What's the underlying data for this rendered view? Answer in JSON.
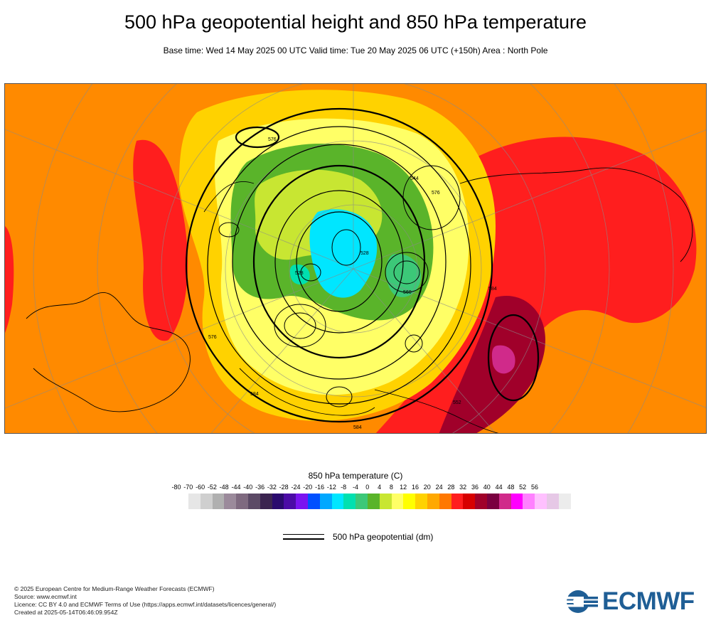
{
  "title": "500 hPa geopotential height and 850 hPa temperature",
  "subtitle": "Base time: Wed 14 May 2025 00 UTC Valid time: Tue 20 May 2025 06 UTC (+150h) Area : North Pole",
  "legend": {
    "temperature_title": "850 hPa temperature (C)",
    "scale_labels": [
      "-80",
      "-70",
      "-60",
      "-52",
      "-48",
      "-44",
      "-40",
      "-36",
      "-32",
      "-28",
      "-24",
      "-20",
      "-16",
      "-12",
      "-8",
      "-4",
      "0",
      "4",
      "8",
      "12",
      "16",
      "20",
      "24",
      "28",
      "32",
      "36",
      "40",
      "44",
      "48",
      "52",
      "56"
    ],
    "scale_colors": [
      "#e6e6e6",
      "#cfcfcf",
      "#b0b0b0",
      "#9b8a9b",
      "#7f6a80",
      "#5c4a66",
      "#3b2450",
      "#2a0a6e",
      "#4b0ba6",
      "#7a14f0",
      "#0050ff",
      "#00a8ff",
      "#00e6ff",
      "#00e0b0",
      "#3cc878",
      "#5ab42a",
      "#c8e632",
      "#ffff66",
      "#ffff00",
      "#ffd200",
      "#ffa800",
      "#ff7800",
      "#ff1e1e",
      "#d70000",
      "#a0002a",
      "#7a0040",
      "#d02a8a",
      "#ff00ff",
      "#ff80ff",
      "#ffc0ff",
      "#e6c8e6",
      "#ececec"
    ],
    "contour_label": "500 hPa geopotential (dm)"
  },
  "map": {
    "contour_labels": [
      "584",
      "552",
      "528",
      "576",
      "584",
      "528",
      "544",
      "560",
      "576",
      "576",
      "584"
    ]
  },
  "footer": {
    "copyright": "© 2025 European Centre for Medium-Range Weather Forecasts (ECMWF)",
    "source": "Source: www.ecmwf.int",
    "licence": "Licence: CC BY 4.0 and ECMWF Terms of Use (https://apps.ecmwf.int/datasets/licences/general/)",
    "created": "Created at 2025-05-14T06:46:09.954Z"
  },
  "logo": {
    "text": "ECMWF",
    "icon": "ecmwf-logo-icon",
    "color": "#1f5e95"
  }
}
